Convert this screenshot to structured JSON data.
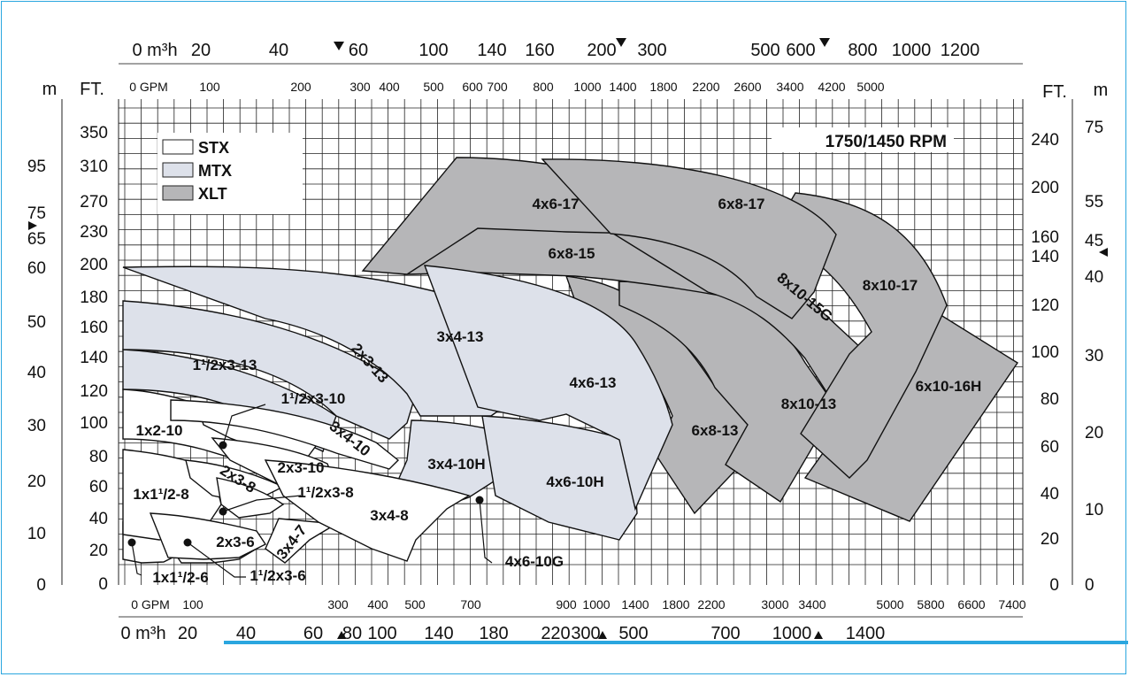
{
  "chart_data": {
    "type": "area",
    "title": "1750/1450 RPM",
    "legend": {
      "placement": "top-left",
      "items": [
        {
          "label": "STX",
          "color": "#ffffff"
        },
        {
          "label": "MTX",
          "color": "#dde1ea"
        },
        {
          "label": "XLT",
          "color": "#b6b6b8"
        }
      ]
    },
    "axes": {
      "left_outer_unit": "m",
      "left_outer_ticks": [
        "95",
        "75",
        "65",
        "60",
        "50",
        "40",
        "30",
        "20",
        "10",
        "0"
      ],
      "left_inner_unit": "FT.",
      "left_inner_ticks": [
        "350",
        "310",
        "270",
        "230",
        "200",
        "180",
        "160",
        "140",
        "120",
        "100",
        "80",
        "60",
        "40",
        "20",
        "0"
      ],
      "right_inner_unit": "FT.",
      "right_inner_ticks": [
        "240",
        "200",
        "160",
        "140",
        "120",
        "100",
        "80",
        "60",
        "40",
        "20",
        "0"
      ],
      "right_outer_unit": "m",
      "right_outer_ticks": [
        "75",
        "55",
        "45",
        "40",
        "30",
        "20",
        "10",
        "0"
      ],
      "top_m3h_ticks": [
        "0  m³h",
        "20",
        "40",
        "60",
        "100",
        "140",
        "160",
        "200",
        "300",
        "500",
        "600",
        "800",
        "1000",
        "1200"
      ],
      "top_gpm_ticks": [
        "0  GPM",
        "100",
        "200",
        "300",
        "400",
        "500",
        "600",
        "700",
        "800",
        "1000",
        "1400",
        "1800",
        "2200",
        "2600",
        "3400",
        "4200",
        "5000"
      ],
      "bottom_gpm_ticks": [
        "0 GPM",
        "100",
        "300",
        "400",
        "500",
        "700",
        "900",
        "1000",
        "1400",
        "1800",
        "2200",
        "3000",
        "3400",
        "5000",
        "5800",
        "6600",
        "7400"
      ],
      "bottom_m3h_ticks": [
        "0 m³h",
        "20",
        "40",
        "60",
        "80",
        "100",
        "140",
        "180",
        "220",
        "300",
        "500",
        "700",
        "1000",
        "1400"
      ]
    },
    "series": [
      {
        "name": "1x1¹/2-6",
        "family": "STX"
      },
      {
        "name": "1¹/2x3-6",
        "family": "STX"
      },
      {
        "name": "1x1¹/2-8",
        "family": "STX"
      },
      {
        "name": "2x3-6",
        "family": "STX"
      },
      {
        "name": "3x4-7",
        "family": "STX"
      },
      {
        "name": "2x3-8",
        "family": "STX"
      },
      {
        "name": "1¹/2x3-8",
        "family": "STX"
      },
      {
        "name": "1x2-10",
        "family": "STX"
      },
      {
        "name": "1¹/2x3-10",
        "family": "STX"
      },
      {
        "name": "2x3-10",
        "family": "STX"
      },
      {
        "name": "3x4-8",
        "family": "STX"
      },
      {
        "name": "3x4-10",
        "family": "STX"
      },
      {
        "name": "3x4-10H",
        "family": "MTX"
      },
      {
        "name": "4x6-10H",
        "family": "MTX"
      },
      {
        "name": "4x6-10G",
        "family": "MTX"
      },
      {
        "name": "1¹/2x3-13",
        "family": "MTX"
      },
      {
        "name": "2x3-13",
        "family": "MTX"
      },
      {
        "name": "3x4-13",
        "family": "MTX"
      },
      {
        "name": "4x6-13",
        "family": "MTX"
      },
      {
        "name": "6x8-13",
        "family": "XLT"
      },
      {
        "name": "8x10-13",
        "family": "XLT"
      },
      {
        "name": "6x10-16H",
        "family": "XLT"
      },
      {
        "name": "6x8-15",
        "family": "XLT"
      },
      {
        "name": "8x10-15G",
        "family": "XLT"
      },
      {
        "name": "8x10-17",
        "family": "XLT"
      },
      {
        "name": "4x6-17",
        "family": "XLT"
      },
      {
        "name": "6x8-17",
        "family": "XLT"
      }
    ]
  }
}
